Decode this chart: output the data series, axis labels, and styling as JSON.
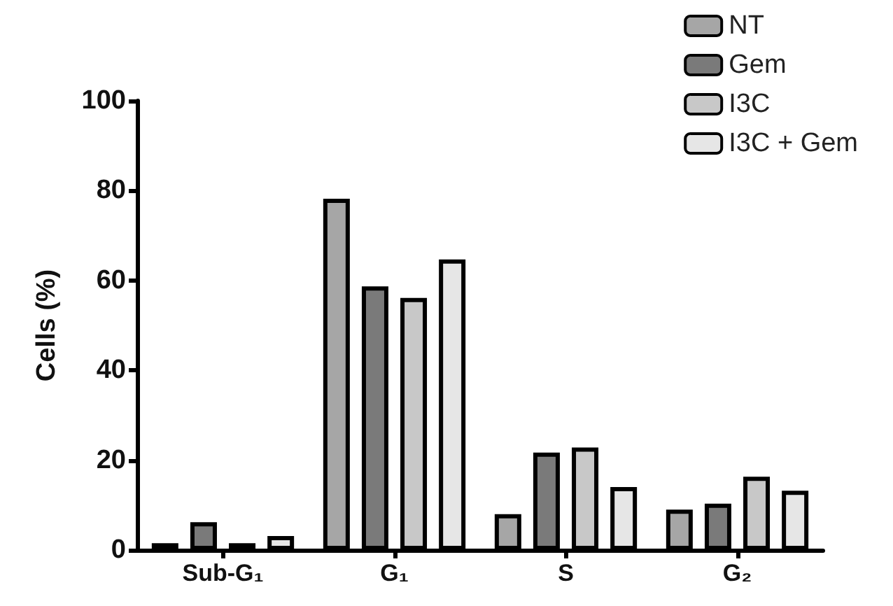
{
  "chart_data": {
    "type": "bar",
    "ylabel": "Cells (%)",
    "categories": [
      "Sub-G₁",
      "G₁",
      "S",
      "G₂"
    ],
    "series": [
      {
        "name": "NT",
        "color": "#a6a6a6",
        "values": [
          1.5,
          78.2,
          8.0,
          9.0
        ]
      },
      {
        "name": "Gem",
        "color": "#7a7a7a",
        "values": [
          6.2,
          58.7,
          21.7,
          10.3
        ]
      },
      {
        "name": "I3C",
        "color": "#c8c8c8",
        "values": [
          1.5,
          56.1,
          22.8,
          16.3
        ]
      },
      {
        "name": "I3C + Gem",
        "color": "#e6e6e6",
        "values": [
          3.1,
          64.7,
          14.0,
          13.2
        ]
      }
    ],
    "ylim": [
      0,
      100
    ],
    "yticks": [
      0,
      20,
      40,
      60,
      80,
      100
    ],
    "grid": false,
    "legend": "top right"
  }
}
